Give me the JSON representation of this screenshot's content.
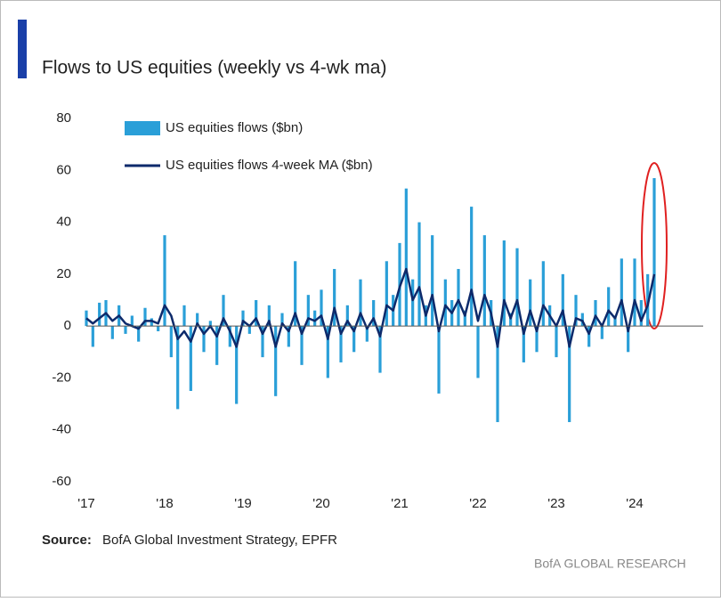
{
  "chart_data": {
    "type": "bar-line",
    "title": "Flows to US equities (weekly vs 4-wk ma)",
    "source_label": "Source:",
    "source": "BofA Global Investment Strategy, EPFR",
    "watermark": "BofA GLOBAL RESEARCH",
    "categories": [
      "'17",
      null,
      null,
      null,
      null,
      null,
      null,
      null,
      null,
      null,
      null,
      null,
      "'18",
      null,
      null,
      null,
      null,
      null,
      null,
      null,
      null,
      null,
      null,
      null,
      "'19",
      null,
      null,
      null,
      null,
      null,
      null,
      null,
      null,
      null,
      null,
      null,
      "'20",
      null,
      null,
      null,
      null,
      null,
      null,
      null,
      null,
      null,
      null,
      null,
      "'21",
      null,
      null,
      null,
      null,
      null,
      null,
      null,
      null,
      null,
      null,
      null,
      "'22",
      null,
      null,
      null,
      null,
      null,
      null,
      null,
      null,
      null,
      null,
      null,
      "'23",
      null,
      null,
      null,
      null,
      null,
      null,
      null,
      null,
      null,
      null,
      null,
      "'24",
      null,
      null,
      null
    ],
    "series": [
      {
        "name": "US equities flows ($bn)",
        "color": "#2a9fd8",
        "kind": "bar",
        "values": [
          6,
          -8,
          9,
          10,
          -5,
          8,
          -3,
          4,
          -6,
          7,
          3,
          -2,
          35,
          -12,
          -32,
          8,
          -25,
          5,
          -10,
          2,
          -15,
          12,
          -8,
          -30,
          6,
          -3,
          10,
          -12,
          8,
          -27,
          5,
          -8,
          25,
          -15,
          12,
          6,
          14,
          -20,
          22,
          -14,
          8,
          -10,
          18,
          -6,
          10,
          -18,
          25,
          12,
          32,
          53,
          18,
          40,
          8,
          35,
          -26,
          18,
          10,
          22,
          6,
          46,
          -20,
          35,
          10,
          -37,
          33,
          5,
          30,
          -14,
          18,
          -10,
          25,
          8,
          -12,
          20,
          -37,
          12,
          5,
          -8,
          10,
          -5,
          15,
          4,
          26,
          -10,
          26,
          10,
          20,
          57
        ]
      },
      {
        "name": "US equities flows 4-week MA ($bn)",
        "color": "#0d2a6b",
        "kind": "line",
        "values": [
          3,
          1,
          3,
          5,
          2,
          4,
          1,
          0,
          -1,
          2,
          2,
          1,
          8,
          4,
          -5,
          -2,
          -6,
          1,
          -3,
          0,
          -4,
          3,
          -2,
          -8,
          2,
          0,
          3,
          -3,
          2,
          -8,
          1,
          -2,
          5,
          -3,
          3,
          2,
          4,
          -5,
          7,
          -3,
          2,
          -2,
          5,
          -1,
          3,
          -4,
          8,
          6,
          15,
          22,
          10,
          15,
          4,
          12,
          -2,
          8,
          5,
          10,
          4,
          14,
          2,
          12,
          5,
          -8,
          10,
          3,
          10,
          -3,
          6,
          -2,
          8,
          4,
          0,
          6,
          -8,
          3,
          2,
          -3,
          4,
          0,
          6,
          3,
          10,
          -2,
          10,
          2,
          8,
          20
        ]
      }
    ],
    "ylim": [
      -60,
      80
    ],
    "yticks": [
      -60,
      -40,
      -20,
      0,
      20,
      40,
      60,
      80
    ],
    "grid": false
  }
}
